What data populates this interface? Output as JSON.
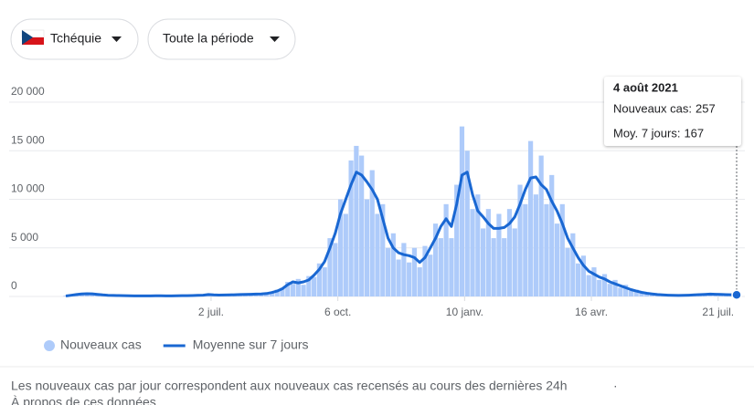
{
  "controls": {
    "country": "Tchéquie",
    "period": "Toute la période"
  },
  "chart_data": {
    "type": "combo",
    "x": [
      0,
      4,
      8,
      12,
      16,
      20,
      24,
      28,
      32,
      36,
      40,
      44,
      48,
      52,
      56,
      60,
      64,
      68,
      72,
      76,
      80,
      84,
      88,
      92,
      96,
      100,
      104,
      108,
      112,
      116,
      120,
      124,
      128,
      132,
      136,
      140,
      144,
      148,
      152,
      156,
      160,
      164,
      168,
      172,
      176,
      180,
      184,
      188,
      192,
      196,
      200,
      204,
      208,
      212,
      216,
      220,
      224,
      228,
      232,
      236,
      240,
      244,
      248,
      252,
      256,
      260,
      264,
      268,
      272,
      276,
      280,
      284,
      288,
      292,
      296,
      300,
      304,
      308,
      312,
      316,
      320,
      324,
      328,
      332,
      336,
      340,
      344,
      348,
      352,
      356,
      360,
      364,
      368,
      372,
      376,
      380,
      384,
      388,
      392,
      396,
      400,
      404,
      408,
      412,
      416,
      420,
      424,
      428,
      432,
      436,
      440,
      444,
      448,
      452,
      456,
      460,
      464,
      468,
      472,
      476,
      480,
      484,
      488,
      492,
      496,
      500,
      504,
      508
    ],
    "xlim": [
      0,
      508
    ],
    "xticks": [
      {
        "value": 110,
        "label": "2 juil."
      },
      {
        "value": 206,
        "label": "6 oct."
      },
      {
        "value": 302,
        "label": "10 janv."
      },
      {
        "value": 398,
        "label": "16 avr."
      },
      {
        "value": 494,
        "label": "21 juil."
      }
    ],
    "ylim": [
      0,
      20000
    ],
    "yticks": [
      0,
      {
        "value": 5000,
        "label": "5 000"
      },
      {
        "value": 10000,
        "label": "10 000"
      },
      {
        "value": 15000,
        "label": "15 000"
      },
      {
        "value": 20000,
        "label": "20 000"
      }
    ],
    "grid": true,
    "series": [
      {
        "name": "Nouveaux cas",
        "type": "bar",
        "color": "#aecbfa",
        "values": [
          80,
          160,
          270,
          320,
          330,
          250,
          260,
          140,
          150,
          90,
          110,
          70,
          90,
          50,
          70,
          50,
          80,
          60,
          90,
          55,
          70,
          60,
          100,
          70,
          110,
          90,
          160,
          250,
          130,
          170,
          120,
          190,
          210,
          180,
          260,
          200,
          280,
          220,
          350,
          480,
          700,
          900,
          1500,
          1300,
          1800,
          1200,
          2100,
          2000,
          3400,
          3000,
          6000,
          5500,
          10000,
          8500,
          14000,
          15500,
          14500,
          10000,
          13000,
          8500,
          9500,
          5000,
          6500,
          3800,
          5500,
          3500,
          5000,
          3000,
          5200,
          4300,
          7500,
          6000,
          9500,
          6000,
          11500,
          17500,
          15000,
          9000,
          10500,
          7000,
          9000,
          6000,
          8500,
          6000,
          9000,
          7000,
          11500,
          9500,
          16000,
          10500,
          14500,
          9500,
          12500,
          7500,
          9500,
          5000,
          6500,
          3400,
          4200,
          2200,
          3000,
          1700,
          2300,
          1300,
          1700,
          900,
          1200,
          600,
          700,
          350,
          420,
          220,
          260,
          130,
          170,
          90,
          130,
          90,
          170,
          130,
          250,
          180,
          310,
          190,
          270,
          160,
          230,
          257
        ]
      },
      {
        "name": "Moyenne sur 7 jours",
        "type": "line",
        "color": "#1967d2",
        "values": [
          50,
          120,
          200,
          260,
          280,
          270,
          220,
          160,
          120,
          100,
          90,
          80,
          70,
          60,
          60,
          55,
          60,
          70,
          65,
          60,
          60,
          70,
          80,
          80,
          90,
          110,
          130,
          200,
          160,
          140,
          150,
          160,
          180,
          200,
          220,
          230,
          240,
          260,
          300,
          400,
          550,
          800,
          1200,
          1500,
          1400,
          1500,
          1700,
          2200,
          2800,
          3600,
          5000,
          6500,
          8500,
          10000,
          11500,
          12800,
          12500,
          11800,
          11000,
          10000,
          8000,
          6000,
          5000,
          4500,
          4300,
          4200,
          4000,
          3500,
          4000,
          5000,
          6000,
          7200,
          8000,
          7200,
          9500,
          12500,
          12800,
          10500,
          8800,
          8200,
          7500,
          7000,
          7000,
          7100,
          7500,
          8200,
          9500,
          11000,
          12200,
          12300,
          11500,
          11000,
          9800,
          8800,
          7500,
          6000,
          5000,
          4000,
          3200,
          2600,
          2300,
          2000,
          1800,
          1500,
          1300,
          1100,
          900,
          700,
          550,
          420,
          330,
          260,
          200,
          160,
          130,
          110,
          100,
          110,
          130,
          160,
          190,
          220,
          240,
          230,
          210,
          190,
          180,
          167
        ]
      }
    ],
    "tooltip": {
      "date": "4 août 2021",
      "labels": [
        "Nouveaux cas:",
        "Moy. 7 jours:"
      ]
    }
  },
  "footer": {
    "note": "Les nouveaux cas par jour correspondent aux nouveaux cas recensés au cours des dernières 24h",
    "separator": "·",
    "link": "À propos de ces données"
  }
}
